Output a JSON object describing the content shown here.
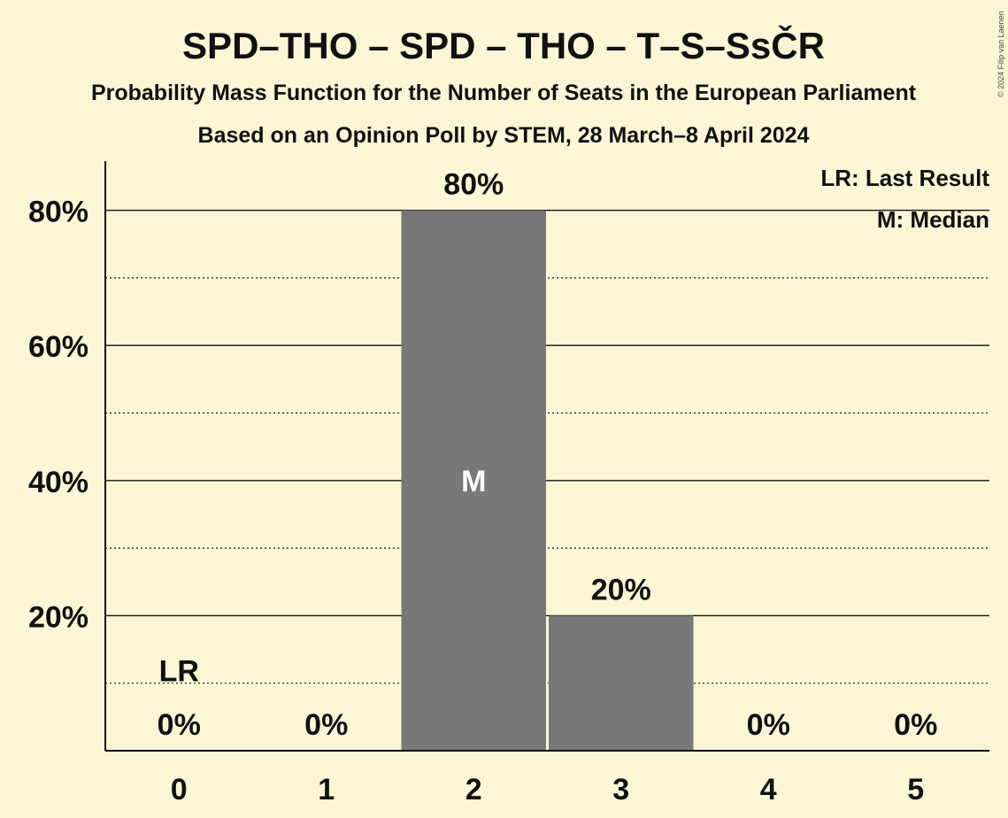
{
  "chart_data": {
    "type": "bar",
    "title": "SPD–THO – SPD – THO – T–S–SsČR",
    "subtitle": "Probability Mass Function for the Number of Seats in the European Parliament",
    "subtitle2": "Based on an Opinion Poll by STEM, 28 March–8 April 2024",
    "copyright": "© 2024 Filip van Laenen",
    "categories": [
      "0",
      "1",
      "2",
      "3",
      "4",
      "5"
    ],
    "values": [
      0,
      0,
      80,
      20,
      0,
      0
    ],
    "value_labels": [
      "0%",
      "0%",
      "80%",
      "20%",
      "0%",
      "0%"
    ],
    "ylim": [
      0,
      87
    ],
    "y_ticks": [
      20,
      40,
      60,
      80
    ],
    "y_tick_labels": [
      "20%",
      "40%",
      "60%",
      "80%"
    ],
    "minor_gridlines": [
      10,
      30,
      50,
      70
    ],
    "last_result_label": "LR",
    "last_result_category": "0",
    "last_result_level": 10,
    "median_label": "M",
    "median_category": "2",
    "legend": [
      "LR: Last Result",
      "M: Median"
    ],
    "legend_position": "top-right",
    "bar_color": "#787878",
    "background_color": "#fdf6d6"
  }
}
